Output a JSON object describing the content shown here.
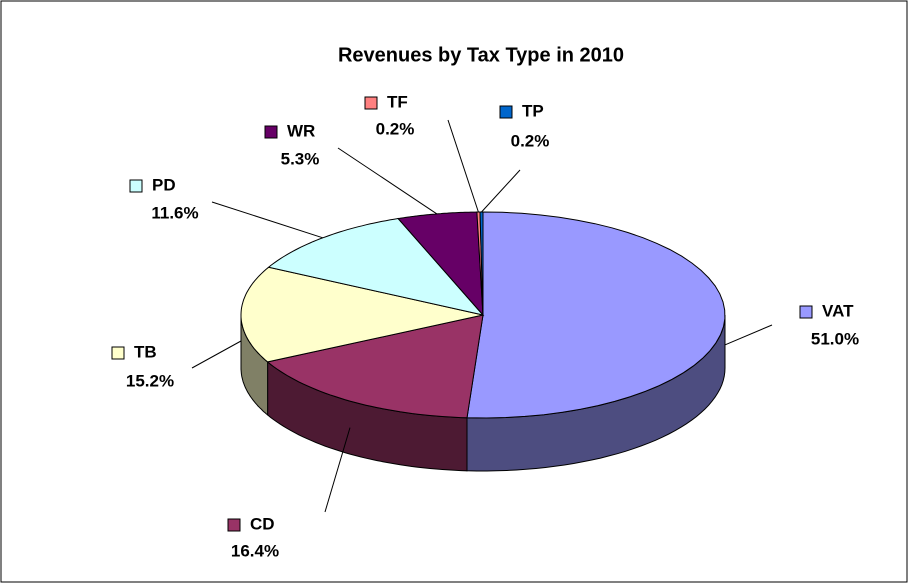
{
  "chart_data": {
    "type": "pie3d",
    "title": "Revenues by Tax Type in 2010",
    "categories": [
      "VAT",
      "CD",
      "TB",
      "PD",
      "WR",
      "TF",
      "TP"
    ],
    "values": [
      51.0,
      16.4,
      15.2,
      11.6,
      5.3,
      0.2,
      0.2
    ],
    "value_labels": [
      "51.0%",
      "16.4%",
      "15.2%",
      "11.6%",
      "5.3%",
      "0.2%",
      "0.2%"
    ],
    "colors": [
      "#9999ff",
      "#993366",
      "#ffffcc",
      "#ccffff",
      "#660066",
      "#ff8080",
      "#0066cc"
    ]
  }
}
